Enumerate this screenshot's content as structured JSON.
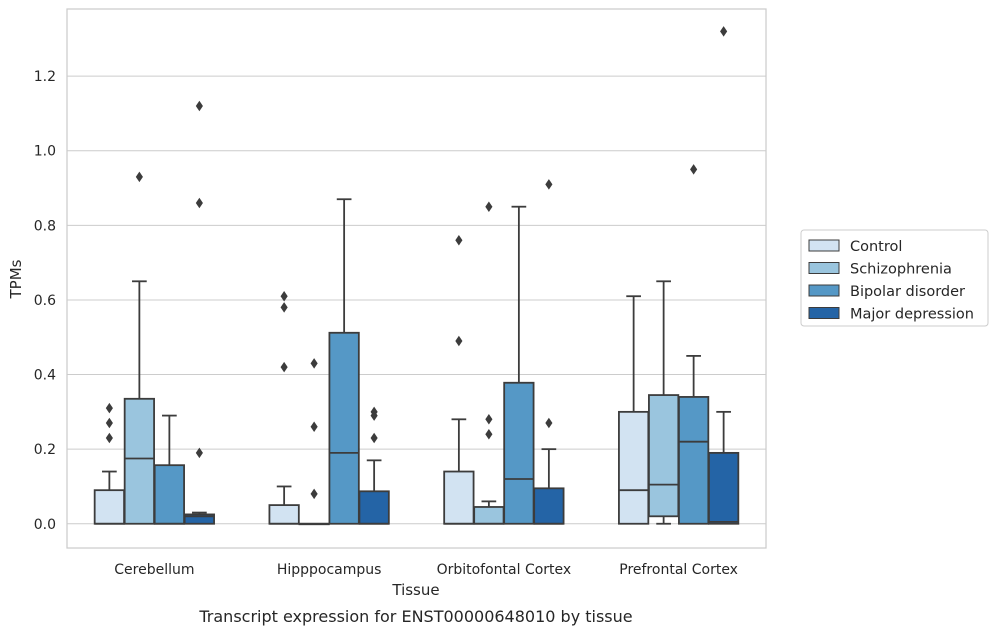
{
  "chart_data": {
    "type": "boxplot",
    "caption": "Transcript expression for ENST00000648010 by tissue",
    "xlabel": "Tissue",
    "ylabel": "TPMs",
    "ylim": [
      -0.065,
      1.38
    ],
    "yticks": [
      0.0,
      0.2,
      0.4,
      0.6,
      0.8,
      1.0,
      1.2
    ],
    "ytick_labels": [
      "0.0",
      "0.2",
      "0.4",
      "0.6",
      "0.8",
      "1.0",
      "1.2"
    ],
    "grid": "horizontal",
    "legend_position": "outside-right",
    "categories": [
      "Cerebellum",
      "Hipppocampus",
      "Orbitofontal Cortex",
      "Prefrontal Cortex"
    ],
    "series": [
      {
        "name": "Control",
        "color": "#d2e3f2",
        "boxes": [
          {
            "q1": 0.0,
            "median": 0.0,
            "q3": 0.09,
            "whisker_low": 0.0,
            "whisker_high": 0.14,
            "outliers": [
              0.23,
              0.27,
              0.31
            ]
          },
          {
            "q1": 0.0,
            "median": 0.0,
            "q3": 0.05,
            "whisker_low": 0.0,
            "whisker_high": 0.1,
            "outliers": [
              0.42,
              0.58,
              0.61
            ]
          },
          {
            "q1": 0.0,
            "median": 0.0,
            "q3": 0.14,
            "whisker_low": 0.0,
            "whisker_high": 0.28,
            "outliers": [
              0.49,
              0.76
            ]
          },
          {
            "q1": 0.0,
            "median": 0.09,
            "q3": 0.3,
            "whisker_low": 0.0,
            "whisker_high": 0.61,
            "outliers": []
          }
        ]
      },
      {
        "name": "Schizophrenia",
        "color": "#9ac5de",
        "boxes": [
          {
            "q1": 0.0,
            "median": 0.175,
            "q3": 0.335,
            "whisker_low": 0.0,
            "whisker_high": 0.65,
            "outliers": [
              0.93
            ]
          },
          {
            "q1": 0.0,
            "median": 0.0,
            "q3": 0.0,
            "whisker_low": 0.0,
            "whisker_high": 0.0,
            "outliers": [
              0.08,
              0.26,
              0.43
            ]
          },
          {
            "q1": 0.0,
            "median": 0.0,
            "q3": 0.045,
            "whisker_low": 0.0,
            "whisker_high": 0.06,
            "outliers": [
              0.24,
              0.28,
              0.85
            ]
          },
          {
            "q1": 0.02,
            "median": 0.105,
            "q3": 0.345,
            "whisker_low": 0.0,
            "whisker_high": 0.65,
            "outliers": []
          }
        ]
      },
      {
        "name": "Bipolar disorder",
        "color": "#5598c6",
        "boxes": [
          {
            "q1": 0.0,
            "median": 0.0,
            "q3": 0.157,
            "whisker_low": 0.0,
            "whisker_high": 0.29,
            "outliers": []
          },
          {
            "q1": 0.0,
            "median": 0.19,
            "q3": 0.512,
            "whisker_low": 0.0,
            "whisker_high": 0.87,
            "outliers": []
          },
          {
            "q1": 0.0,
            "median": 0.12,
            "q3": 0.378,
            "whisker_low": 0.0,
            "whisker_high": 0.85,
            "outliers": []
          },
          {
            "q1": 0.0,
            "median": 0.22,
            "q3": 0.34,
            "whisker_low": 0.0,
            "whisker_high": 0.45,
            "outliers": [
              0.95
            ]
          }
        ]
      },
      {
        "name": "Major depression",
        "color": "#2464a6",
        "boxes": [
          {
            "q1": 0.0,
            "median": 0.02,
            "q3": 0.025,
            "whisker_low": 0.0,
            "whisker_high": 0.03,
            "outliers": [
              0.19,
              0.86,
              1.12
            ]
          },
          {
            "q1": 0.0,
            "median": 0.0,
            "q3": 0.087,
            "whisker_low": 0.0,
            "whisker_high": 0.17,
            "outliers": [
              0.23,
              0.29,
              0.3
            ]
          },
          {
            "q1": 0.0,
            "median": 0.0,
            "q3": 0.095,
            "whisker_low": 0.0,
            "whisker_high": 0.2,
            "outliers": [
              0.27,
              0.91
            ]
          },
          {
            "q1": 0.0,
            "median": 0.005,
            "q3": 0.19,
            "whisker_low": 0.0,
            "whisker_high": 0.3,
            "outliers": [
              1.32
            ]
          }
        ]
      }
    ]
  }
}
